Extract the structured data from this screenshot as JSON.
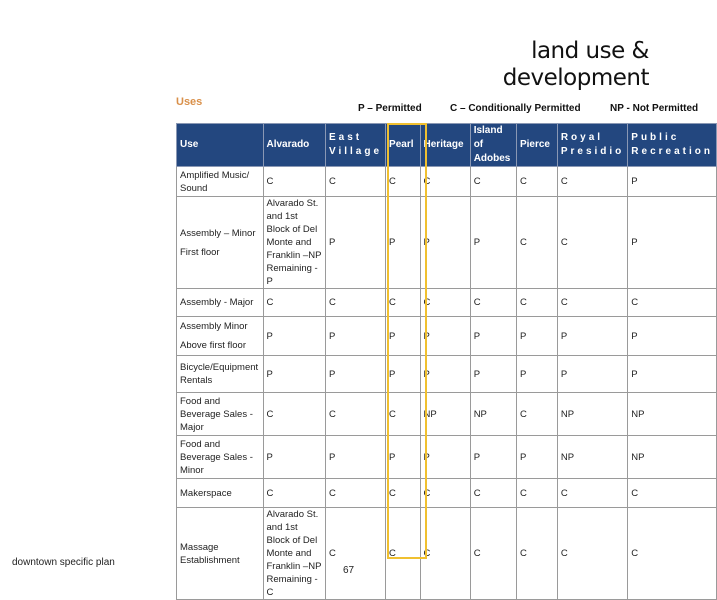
{
  "title_line1": "land use &",
  "title_line2": "development",
  "section": "Uses",
  "legend": {
    "p": "P – Permitted",
    "c": "C – Conditionally Permitted",
    "np": "NP - Not Permitted"
  },
  "highlight_color": "#f0c030",
  "header_color": "#23477f",
  "table": {
    "headers": [
      "Use",
      "Alvarado",
      "East Village",
      "Pearl",
      "Heritage",
      "Island of Adobes",
      "Pierce",
      "Royal Presidio",
      "Public Recreation"
    ],
    "rows": [
      [
        "Amplified Music/ Sound",
        "C",
        "C",
        "C",
        "C",
        "C",
        "C",
        "C",
        "P"
      ],
      [
        "Assembly – Minor\nFirst floor",
        "Alvarado St. and 1st Block of Del Monte and Franklin –NP Remaining - P",
        "P",
        "P",
        "P",
        "P",
        "C",
        "C",
        "P"
      ],
      [
        "Assembly - Major",
        "C",
        "C",
        "C",
        "C",
        "C",
        "C",
        "C",
        "C"
      ],
      [
        "Assembly Minor\nAbove first floor",
        "P",
        "P",
        "P",
        "P",
        "P",
        "P",
        "P",
        "P"
      ],
      [
        "Bicycle/Equipment Rentals",
        "P",
        "P",
        "P",
        "P",
        "P",
        "P",
        "P",
        "P"
      ],
      [
        "Food and Beverage Sales - Major",
        "C",
        "C",
        "C",
        "NP",
        "NP",
        "C",
        "NP",
        "NP"
      ],
      [
        "Food and Beverage Sales - Minor",
        "P",
        "P",
        "P",
        "P",
        "P",
        "P",
        "NP",
        "NP"
      ],
      [
        "Makerspace",
        "C",
        "C",
        "C",
        "C",
        "C",
        "C",
        "C",
        "C"
      ],
      [
        "Massage Establishment",
        "Alvarado St. and 1st Block of Del Monte and Franklin –NP Remaining - C",
        "C",
        "C",
        "C",
        "C",
        "C",
        "C",
        "C"
      ]
    ]
  },
  "footer": "downtown specific plan",
  "page_number": "67"
}
